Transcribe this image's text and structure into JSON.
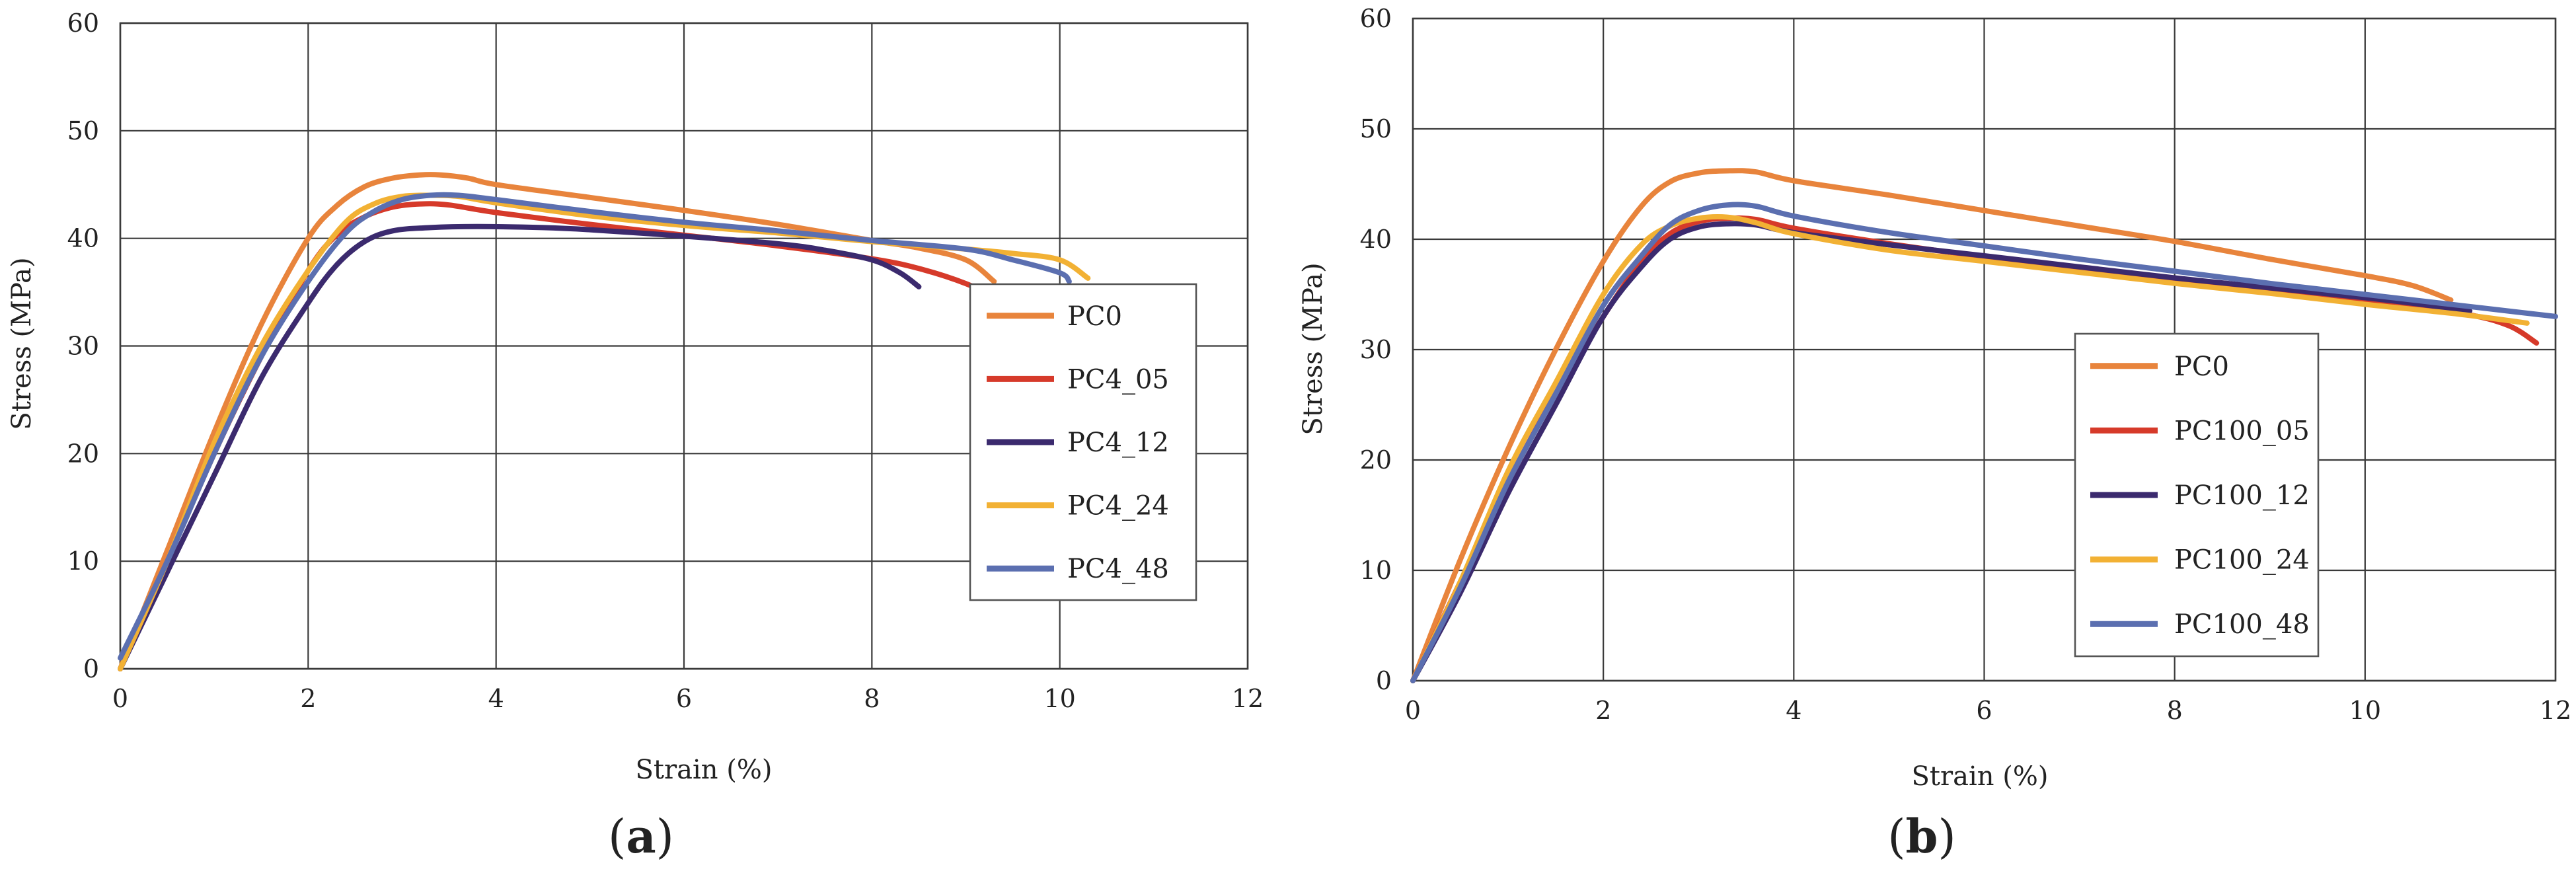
{
  "chart_data": [
    {
      "id": "a",
      "type": "line",
      "caption": "a",
      "xlabel": "Strain (%)",
      "ylabel": "Stress (MPa)",
      "xlim": [
        0,
        12
      ],
      "ylim": [
        0,
        60
      ],
      "xticks": [
        0,
        2,
        4,
        6,
        8,
        10,
        12
      ],
      "yticks": [
        0,
        10,
        20,
        30,
        40,
        50,
        60
      ],
      "grid": true,
      "legend_position": "right",
      "series": [
        {
          "name": "PC0",
          "color": "#E8843C",
          "x": [
            0,
            0.5,
            1,
            1.5,
            2,
            2.3,
            2.6,
            2.9,
            3.2,
            3.4,
            3.7,
            4,
            5,
            6,
            7,
            8,
            8.5,
            9,
            9.3
          ],
          "y": [
            0,
            11,
            22,
            32,
            40,
            43,
            44.8,
            45.6,
            45.9,
            45.9,
            45.6,
            45,
            43.8,
            42.6,
            41.3,
            39.8,
            39.1,
            38,
            36
          ]
        },
        {
          "name": "PC4_05",
          "color": "#D63A2A",
          "x": [
            0,
            0.5,
            1,
            1.5,
            2,
            2.3,
            2.6,
            2.9,
            3.2,
            3.5,
            4,
            5,
            6,
            7,
            8,
            8.5,
            9,
            9.3
          ],
          "y": [
            0,
            10,
            20,
            29,
            37,
            40.3,
            42,
            42.9,
            43.2,
            43.1,
            42.4,
            41.3,
            40.3,
            39.3,
            38.1,
            37.2,
            35.8,
            34.5
          ]
        },
        {
          "name": "PC4_12",
          "color": "#3B2A6E",
          "x": [
            0,
            0.5,
            1,
            1.5,
            2,
            2.3,
            2.6,
            2.9,
            3.3,
            3.8,
            4.5,
            5,
            6,
            7,
            7.5,
            8,
            8.3,
            8.5
          ],
          "y": [
            0,
            9,
            18,
            27,
            34,
            37.5,
            39.7,
            40.7,
            41,
            41.1,
            41,
            40.8,
            40.2,
            39.5,
            38.9,
            38,
            36.8,
            35.5
          ]
        },
        {
          "name": "PC4_24",
          "color": "#F2B134",
          "x": [
            0,
            0.5,
            1,
            1.5,
            2,
            2.4,
            2.7,
            3,
            3.3,
            3.6,
            4,
            5,
            6,
            7,
            8,
            9,
            9.5,
            10,
            10.3
          ],
          "y": [
            0,
            10,
            21,
            30,
            37,
            41.5,
            43.2,
            43.9,
            44,
            43.9,
            43.3,
            42.1,
            41.2,
            40.5,
            39.7,
            39,
            38.6,
            38,
            36.3
          ]
        },
        {
          "name": "PC4_48",
          "color": "#5B6FB0",
          "x": [
            0,
            0.5,
            1,
            1.5,
            2,
            2.4,
            2.7,
            3,
            3.3,
            3.6,
            4,
            5,
            6,
            7,
            8,
            9,
            9.5,
            10,
            10.1
          ],
          "y": [
            1,
            10,
            20,
            29,
            36,
            40.5,
            42.5,
            43.6,
            44,
            44,
            43.6,
            42.5,
            41.5,
            40.7,
            39.8,
            39,
            38,
            36.8,
            36
          ]
        }
      ],
      "legend": [
        "PC0",
        "PC4_05",
        "PC4_12",
        "PC4_24",
        "PC4_48"
      ]
    },
    {
      "id": "b",
      "type": "line",
      "caption": "b",
      "xlabel": "Strain (%)",
      "ylabel": "Stress (MPa)",
      "xlim": [
        0,
        12
      ],
      "ylim": [
        0,
        60
      ],
      "xticks": [
        0,
        2,
        4,
        6,
        8,
        10,
        12
      ],
      "yticks": [
        0,
        10,
        20,
        30,
        40,
        50,
        60
      ],
      "grid": true,
      "legend_position": "center-right",
      "series": [
        {
          "name": "PC0",
          "color": "#E8843C",
          "x": [
            0,
            0.5,
            1,
            1.5,
            2,
            2.4,
            2.7,
            3,
            3.3,
            3.6,
            4,
            5,
            6,
            7,
            8,
            9,
            10,
            10.5,
            10.9
          ],
          "y": [
            0,
            11,
            21,
            30,
            38,
            43,
            45.2,
            46,
            46.2,
            46.1,
            45.3,
            44,
            42.6,
            41.2,
            39.8,
            38.2,
            36.7,
            35.8,
            34.5
          ]
        },
        {
          "name": "PC100_05",
          "color": "#D63A2A",
          "x": [
            0,
            0.5,
            1,
            1.5,
            2,
            2.4,
            2.7,
            3,
            3.3,
            3.6,
            4,
            5,
            6,
            7,
            8,
            9,
            10,
            11,
            11.5,
            11.8
          ],
          "y": [
            0,
            9,
            18,
            26,
            33,
            38,
            40.5,
            41.6,
            41.9,
            41.8,
            41,
            39.6,
            38.4,
            37.3,
            36.3,
            35.4,
            34.4,
            33.3,
            32.2,
            30.6
          ]
        },
        {
          "name": "PC100_12",
          "color": "#3B2A6E",
          "x": [
            0,
            0.5,
            1,
            1.5,
            2,
            2.4,
            2.7,
            3,
            3.3,
            3.6,
            4,
            5,
            6,
            7,
            8,
            9,
            10,
            10.5,
            11.1
          ],
          "y": [
            0,
            8,
            17,
            25,
            33,
            37.5,
            40,
            41.1,
            41.4,
            41.3,
            40.6,
            39.5,
            38.5,
            37.5,
            36.5,
            35.6,
            34.7,
            34.2,
            33.5
          ]
        },
        {
          "name": "PC100_24",
          "color": "#F2B134",
          "x": [
            0,
            0.5,
            1,
            1.5,
            2,
            2.4,
            2.7,
            3,
            3.3,
            3.6,
            4,
            5,
            6,
            7,
            8,
            9,
            10,
            11,
            11.7
          ],
          "y": [
            0,
            9,
            19,
            27,
            35,
            39.5,
            41.2,
            41.9,
            42,
            41.5,
            40.5,
            39,
            38,
            37,
            36,
            35.1,
            34.1,
            33.2,
            32.4
          ]
        },
        {
          "name": "PC100_48",
          "color": "#5B6FB0",
          "x": [
            0,
            0.5,
            1,
            1.5,
            2,
            2.4,
            2.7,
            3,
            3.3,
            3.6,
            4,
            5,
            6,
            7,
            8,
            9,
            10,
            11,
            12
          ],
          "y": [
            0,
            8.5,
            18,
            26,
            34,
            38.5,
            41.3,
            42.6,
            43.1,
            43,
            42.1,
            40.6,
            39.4,
            38.2,
            37.1,
            36,
            35,
            34,
            33
          ]
        }
      ],
      "legend": [
        "PC0",
        "PC100_05",
        "PC100_12",
        "PC100_24",
        "PC100_48"
      ]
    }
  ]
}
